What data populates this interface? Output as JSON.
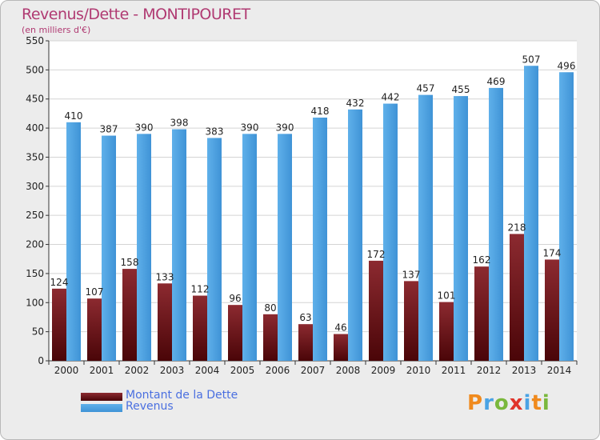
{
  "chart_data": {
    "type": "bar",
    "title": "Revenus/Dette - MONTIPOURET",
    "subtitle": "(en milliers d'€)",
    "categories": [
      "2000",
      "2001",
      "2002",
      "2003",
      "2004",
      "2005",
      "2006",
      "2007",
      "2008",
      "2009",
      "2010",
      "2011",
      "2012",
      "2013",
      "2014"
    ],
    "series": [
      {
        "name": "Montant de la Dette",
        "color": "#7a1a1f",
        "values": [
          124,
          107,
          158,
          133,
          112,
          96,
          80,
          63,
          46,
          172,
          137,
          101,
          162,
          218,
          174
        ]
      },
      {
        "name": "Revenus",
        "color": "#4aa3e4",
        "values": [
          410,
          387,
          390,
          398,
          383,
          390,
          390,
          418,
          432,
          442,
          457,
          455,
          469,
          507,
          496
        ]
      }
    ],
    "ylim": [
      0,
      550
    ],
    "yticks": [
      0,
      50,
      100,
      150,
      200,
      250,
      300,
      350,
      400,
      450,
      500,
      550
    ],
    "grid": true,
    "legend_position": "bottom-left"
  },
  "logo_text": "Proxiti",
  "logo_colors": [
    "#f08a1d",
    "#4aa3e4",
    "#7ab83c",
    "#e0342a",
    "#4aa3e4",
    "#f08a1d",
    "#7ab83c"
  ]
}
